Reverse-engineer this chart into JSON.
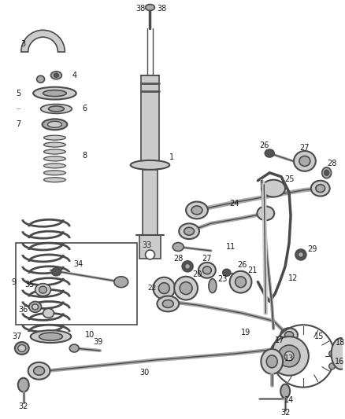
{
  "bg_color": "#ffffff",
  "line_color": "#4a4a4a",
  "label_color": "#1a1a1a",
  "gray_fill": "#aaaaaa",
  "dark_fill": "#555555",
  "light_fill": "#cccccc",
  "mid_fill": "#888888"
}
